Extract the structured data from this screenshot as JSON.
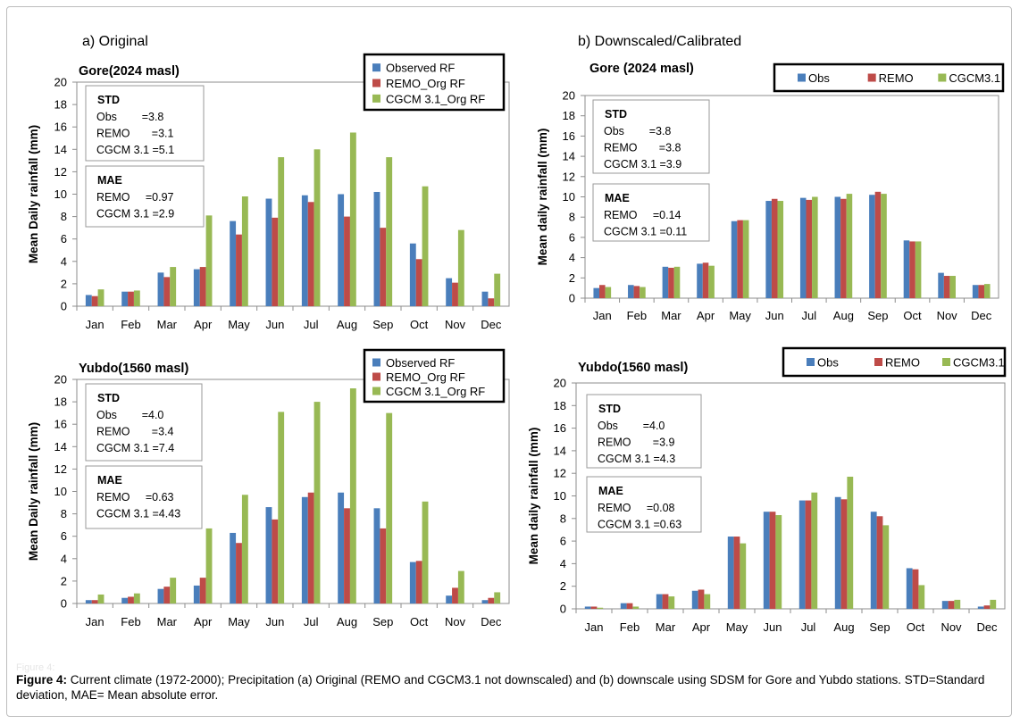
{
  "sections": {
    "left": "a) Original",
    "right": "b) Downscaled/Calibrated"
  },
  "caption": {
    "label": "Figure 4:",
    "text": " Current climate (1972-2000); Precipitation (a) Original (REMO and CGCM3.1 not downscaled) and (b) downscale using SDSM for Gore and Yubdo stations. STD=Standard deviation, MAE= Mean absolute error."
  },
  "faint_label": "Figure 4:",
  "colors": {
    "obs": "#4a7ebb",
    "remo": "#be4b48",
    "cgcm": "#98b954"
  },
  "chart_data": [
    {
      "type": "bar",
      "id": "a_gore",
      "title": "Gore(2024 masl)",
      "ylabel": "Mean Daily rainfall (mm)",
      "ylim": [
        0,
        20
      ],
      "yticks": [
        "0",
        "2",
        "4",
        "6",
        "8",
        "10",
        "12",
        "14",
        "16",
        "18",
        "20"
      ],
      "categories": [
        "Jan",
        "Feb",
        "Mar",
        "Apr",
        "May",
        "Jun",
        "Jul",
        "Aug",
        "Sep",
        "Oct",
        "Nov",
        "Dec"
      ],
      "series": [
        {
          "name": "Observed RF",
          "values": [
            1.0,
            1.3,
            3.0,
            3.3,
            7.6,
            9.6,
            9.9,
            10.0,
            10.2,
            5.6,
            2.5,
            1.3
          ]
        },
        {
          "name": "REMO_Org RF",
          "values": [
            0.9,
            1.3,
            2.6,
            3.5,
            6.4,
            7.9,
            9.3,
            8.0,
            7.0,
            4.2,
            2.1,
            0.7
          ]
        },
        {
          "name": "CGCM 3.1_Org RF",
          "values": [
            1.5,
            1.4,
            3.5,
            8.1,
            9.8,
            13.3,
            14.0,
            15.5,
            13.3,
            10.7,
            6.8,
            2.9
          ]
        }
      ],
      "stats": {
        "std_title": "STD",
        "std_lines": [
          "Obs        =3.8",
          "REMO       =3.1",
          "CGCM 3.1 =5.1"
        ],
        "mae_title": "MAE",
        "mae_lines": [
          "REMO     =0.97",
          "CGCM 3.1 =2.9"
        ]
      },
      "legend": "top-right"
    },
    {
      "type": "bar",
      "id": "b_gore",
      "title": "Gore (2024 masl)",
      "ylabel": "Mean daily rainfall (mm)",
      "ylim": [
        0,
        20
      ],
      "yticks": [
        "0",
        "2",
        "4",
        "6",
        "8",
        "10",
        "12",
        "14",
        "16",
        "18",
        "20"
      ],
      "categories": [
        "Jan",
        "Feb",
        "Mar",
        "Apr",
        "May",
        "Jun",
        "Jul",
        "Aug",
        "Sep",
        "Oct",
        "Nov",
        "Dec"
      ],
      "series": [
        {
          "name": "Obs",
          "values": [
            1.0,
            1.3,
            3.1,
            3.4,
            7.6,
            9.6,
            9.9,
            10.0,
            10.2,
            5.7,
            2.5,
            1.3
          ]
        },
        {
          "name": "REMO",
          "values": [
            1.3,
            1.2,
            3.0,
            3.5,
            7.7,
            9.8,
            9.7,
            9.8,
            10.5,
            5.6,
            2.2,
            1.3
          ]
        },
        {
          "name": "CGCM3.1",
          "values": [
            1.1,
            1.1,
            3.1,
            3.2,
            7.7,
            9.6,
            10.0,
            10.3,
            10.3,
            5.6,
            2.2,
            1.4
          ]
        }
      ],
      "stats": {
        "std_title": "STD",
        "std_lines": [
          "Obs        =3.8",
          "REMO       =3.8",
          "CGCM 3.1 =3.9"
        ],
        "mae_title": "MAE",
        "mae_lines": [
          "REMO     =0.14",
          "CGCM 3.1 =0.11"
        ]
      },
      "legend": "top-right"
    },
    {
      "type": "bar",
      "id": "a_yubdo",
      "title": "Yubdo(1560 masl)",
      "ylabel": "Mean Daily rainfall (mm)",
      "ylim": [
        0,
        20
      ],
      "yticks": [
        "0",
        "2",
        "4",
        "6",
        "8",
        "10",
        "12",
        "14",
        "16",
        "18",
        "20"
      ],
      "categories": [
        "Jan",
        "Feb",
        "Mar",
        "Apr",
        "May",
        "Jun",
        "Jul",
        "Aug",
        "Sep",
        "Oct",
        "Nov",
        "Dec"
      ],
      "series": [
        {
          "name": "Observed RF",
          "values": [
            0.3,
            0.5,
            1.3,
            1.6,
            6.3,
            8.6,
            9.5,
            9.9,
            8.5,
            3.7,
            0.7,
            0.3
          ]
        },
        {
          "name": "REMO_Org RF",
          "values": [
            0.3,
            0.6,
            1.5,
            2.3,
            5.4,
            7.5,
            9.9,
            8.5,
            6.7,
            3.8,
            1.4,
            0.5
          ]
        },
        {
          "name": "CGCM 3.1_Org RF",
          "values": [
            0.8,
            0.9,
            2.3,
            6.7,
            9.7,
            17.1,
            18.0,
            19.2,
            17.0,
            9.1,
            2.9,
            1.0
          ]
        }
      ],
      "stats": {
        "std_title": "STD",
        "std_lines": [
          "Obs        =4.0",
          "REMO       =3.4",
          "CGCM 3.1 =7.4"
        ],
        "mae_title": "MAE",
        "mae_lines": [
          "REMO     =0.63",
          "CGCM 3.1 =4.43"
        ]
      },
      "legend": "top-right"
    },
    {
      "type": "bar",
      "id": "b_yubdo",
      "title": "Yubdo(1560 masl)",
      "ylabel": "Mean  daily rainfall (mm)",
      "ylim": [
        0,
        20
      ],
      "yticks": [
        "0",
        "2",
        "4",
        "6",
        "8",
        "10",
        "12",
        "14",
        "16",
        "18",
        "20"
      ],
      "categories": [
        "Jan",
        "Feb",
        "Mar",
        "Apr",
        "May",
        "Jun",
        "Jul",
        "Aug",
        "Sep",
        "Oct",
        "Nov",
        "Dec"
      ],
      "series": [
        {
          "name": "Obs",
          "values": [
            0.2,
            0.5,
            1.3,
            1.6,
            6.4,
            8.6,
            9.6,
            9.9,
            8.6,
            3.6,
            0.7,
            0.2
          ]
        },
        {
          "name": "REMO",
          "values": [
            0.2,
            0.5,
            1.3,
            1.7,
            6.4,
            8.6,
            9.6,
            9.7,
            8.2,
            3.5,
            0.7,
            0.3
          ]
        },
        {
          "name": "CGCM3.1",
          "values": [
            0.1,
            0.2,
            1.1,
            1.3,
            5.8,
            8.3,
            10.3,
            11.7,
            7.4,
            2.1,
            0.8,
            0.8
          ]
        }
      ],
      "stats": {
        "std_title": "STD",
        "std_lines": [
          "Obs        =4.0",
          "REMO       =3.9",
          "CGCM 3.1 =4.3"
        ],
        "mae_title": "MAE",
        "mae_lines": [
          "REMO     =0.08",
          "CGCM 3.1 =0.63"
        ]
      },
      "legend": "top-right"
    }
  ]
}
